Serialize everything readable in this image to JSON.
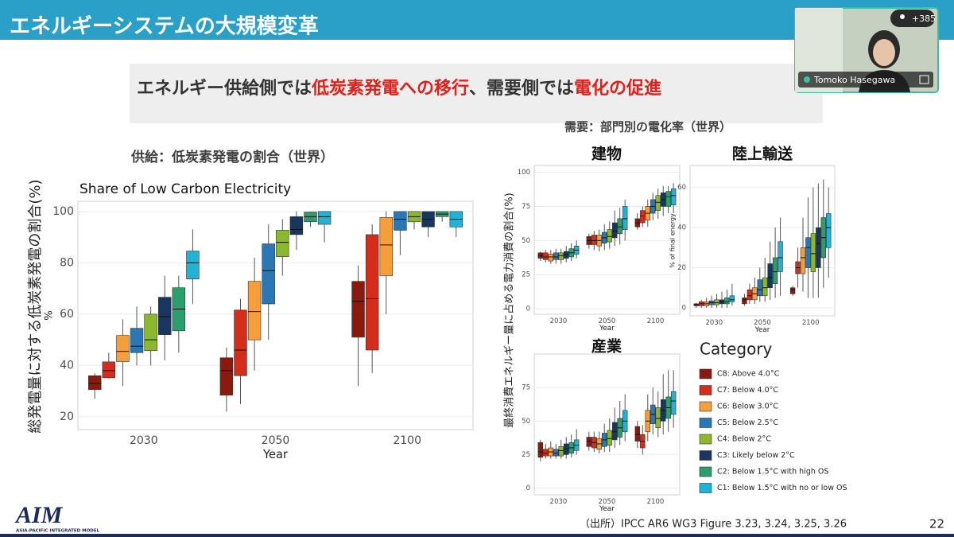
{
  "slide": {
    "title": "エネルギーシステムの大規模変革",
    "headline": [
      {
        "text": "エネルギー供給側では",
        "color": "#333333"
      },
      {
        "text": "低炭素発電への移行",
        "color": "#e0201b"
      },
      {
        "text": "、需要側では",
        "color": "#333333"
      },
      {
        "text": "電化の促進",
        "color": "#e0201b"
      }
    ],
    "supply_heading": "供給：低炭素発電の割合（世界）",
    "demand_heading": "需要：部門別の電化率（世界）",
    "supply_ylabel": "総発電量に対する低炭素発電の割合(%)",
    "demand_ylabel": "最終消費エネルギー量に占める電力消費の割合(%)",
    "source": "（出所）IPCC AR6 WG3 Figure 3.23, 3.24, 3.25, 3.26",
    "page_number": "22",
    "logo": {
      "name": "AIM",
      "tagline": "ASIA-PACIFIC INTEGRATED MODEL"
    }
  },
  "video": {
    "participant": "Tomoko Hasegawa",
    "count": "+385"
  },
  "legend": {
    "title": "Category",
    "series": [
      {
        "name": "C8: Above 4.0°C",
        "color": "#8b1a0e"
      },
      {
        "name": "C7: Below 4.0°C",
        "color": "#d62d1a"
      },
      {
        "name": "C6: Below 3.0°C",
        "color": "#f59e3a"
      },
      {
        "name": "C5: Below 2.5°C",
        "color": "#2a77b4"
      },
      {
        "name": "C4: Below 2°C",
        "color": "#8ab82e"
      },
      {
        "name": "C3: Likely below 2°C",
        "color": "#17375e"
      },
      {
        "name": "C2: Below 1.5°C with high OS",
        "color": "#2c9e6e"
      },
      {
        "name": "C1: Below 1.5°C with no or low OS",
        "color": "#22b2d6"
      }
    ]
  },
  "chart_data": [
    {
      "type": "box",
      "title": "Share of Low Carbon Electricity",
      "xlabel": "Year",
      "ylabel": "%",
      "categories": [
        "2030",
        "2050",
        "2100"
      ],
      "ylim": [
        15,
        104
      ],
      "yticks": [
        20,
        40,
        60,
        80,
        100
      ],
      "grid": true,
      "series": [
        {
          "values": [
            [
              27,
              30.6,
              33,
              36,
              37
            ],
            [
              22,
              28.4,
              38,
              43,
              47
            ],
            [
              32,
              51,
              65,
              72.8,
              79
            ]
          ]
        },
        {
          "values": [
            [
              35,
              35.2,
              38,
              41.4,
              45
            ],
            [
              25,
              36,
              46,
              61.6,
              66
            ],
            [
              37,
              46,
              66,
              91,
              95
            ]
          ]
        },
        {
          "values": [
            [
              32,
              41.5,
              45.5,
              51.7,
              58
            ],
            [
              38,
              50,
              61,
              72.8,
              82
            ],
            [
              60,
              75,
              87,
              97.7,
              100
            ]
          ]
        },
        {
          "values": [
            [
              40,
              45,
              47.5,
              54.5,
              63
            ],
            [
              50,
              64,
              77,
              87.4,
              95
            ],
            [
              83,
              92.7,
              97,
              100,
              100
            ]
          ]
        },
        {
          "values": [
            [
              40,
              45.8,
              50,
              60,
              63
            ],
            [
              75,
              82.4,
              88,
              92.7,
              97
            ],
            [
              93,
              96,
              98,
              100,
              100
            ]
          ]
        },
        {
          "values": [
            [
              42,
              52,
              59,
              66.6,
              75
            ],
            [
              85,
              91,
              93,
              98,
              100
            ],
            [
              90,
              94,
              97,
              100,
              100
            ]
          ]
        },
        {
          "values": [
            [
              45,
              53.5,
              62,
              70.3,
              75
            ],
            [
              94,
              96,
              98,
              99.8,
              100
            ],
            [
              96,
              98,
              99,
              100,
              100
            ]
          ]
        },
        {
          "values": [
            [
              64,
              73.7,
              80,
              84.6,
              93
            ],
            [
              88,
              95,
              98,
              100,
              100
            ],
            [
              90,
              94,
              97,
              100,
              100
            ]
          ]
        }
      ]
    },
    {
      "type": "box",
      "title": "建物",
      "xlabel": "Year",
      "categories": [
        "2030",
        "2050",
        "2100"
      ],
      "ylim": [
        -4,
        105
      ],
      "yticks": [
        0,
        25,
        50,
        75,
        100
      ],
      "grid": true,
      "series": [
        {
          "values": [
            [
              35,
              37,
              39,
              41,
              42
            ],
            [
              44,
              47,
              50,
              53,
              55
            ],
            [
              58,
              60,
              63,
              66,
              70
            ]
          ]
        },
        {
          "values": [
            [
              34,
              36,
              38,
              41,
              43
            ],
            [
              43,
              47,
              50,
              54,
              57
            ],
            [
              60,
              63,
              68,
              72,
              75
            ]
          ]
        },
        {
          "values": [
            [
              33,
              35,
              38,
              40,
              43
            ],
            [
              42,
              46,
              50,
              54,
              58
            ],
            [
              60,
              65,
              70,
              75,
              80
            ]
          ]
        },
        {
          "values": [
            [
              33,
              36,
              38,
              41,
              44
            ],
            [
              43,
              48,
              52,
              56,
              62
            ],
            [
              65,
              70,
              75,
              80,
              85
            ]
          ]
        },
        {
          "values": [
            [
              33,
              36,
              39,
              41,
              44
            ],
            [
              44,
              49,
              53,
              58,
              64
            ],
            [
              66,
              72,
              78,
              83,
              88
            ]
          ]
        },
        {
          "values": [
            [
              34,
              37,
              40,
              42,
              46
            ],
            [
              46,
              52,
              57,
              63,
              72
            ],
            [
              68,
              75,
              80,
              85,
              90
            ]
          ]
        },
        {
          "values": [
            [
              35,
              38,
              41,
              44,
              48
            ],
            [
              47,
              55,
              60,
              66,
              74
            ],
            [
              70,
              75,
              82,
              86,
              90
            ]
          ]
        },
        {
          "values": [
            [
              37,
              40,
              43,
              46,
              50
            ],
            [
              50,
              58,
              66,
              75,
              80
            ],
            [
              70,
              76,
              83,
              88,
              92
            ]
          ]
        }
      ]
    },
    {
      "type": "box",
      "title": "陸上輸送",
      "xlabel": "Year",
      "ylabel": "% of final energy",
      "categories": [
        "2030",
        "2050",
        "2100"
      ],
      "ylim": [
        -4,
        71
      ],
      "yticks": [
        0,
        20,
        40,
        60
      ],
      "grid": true,
      "series": [
        {
          "values": [
            [
              0,
              1,
              1.5,
              2,
              2.5
            ],
            [
              1,
              2,
              4,
              5,
              7
            ],
            [
              6,
              7,
              9,
              10,
              11
            ]
          ]
        },
        {
          "values": [
            [
              0,
              1,
              2,
              3,
              4
            ],
            [
              2,
              4,
              6,
              9,
              12
            ],
            [
              10,
              17,
              20,
              23,
              30
            ]
          ]
        },
        {
          "values": [
            [
              0,
              1,
              2,
              3,
              5
            ],
            [
              2,
              4,
              7,
              10,
              15
            ],
            [
              8,
              17,
              25,
              30,
              45
            ]
          ]
        },
        {
          "values": [
            [
              0,
              1.5,
              2.5,
              3.5,
              6
            ],
            [
              3,
              6,
              9,
              14,
              20
            ],
            [
              5,
              20,
              30,
              35,
              55
            ]
          ]
        },
        {
          "values": [
            [
              0,
              1.5,
              2.5,
              4,
              7
            ],
            [
              3,
              6,
              10,
              15,
              25
            ],
            [
              5,
              18,
              27,
              37,
              60
            ]
          ]
        },
        {
          "values": [
            [
              0,
              2,
              3,
              4,
              8
            ],
            [
              4,
              10,
              15,
              22,
              33
            ],
            [
              5,
              20,
              32,
              40,
              62
            ]
          ]
        },
        {
          "values": [
            [
              0,
              2,
              3,
              5,
              9
            ],
            [
              5,
              12,
              18,
              25,
              40
            ],
            [
              10,
              25,
              35,
              45,
              64
            ]
          ]
        },
        {
          "values": [
            [
              1,
              3,
              4,
              6,
              12
            ],
            [
              6,
              18,
              25,
              33,
              45
            ],
            [
              15,
              30,
              40,
              47,
              60
            ]
          ]
        }
      ]
    },
    {
      "type": "box",
      "title": "産業",
      "xlabel": "Year",
      "categories": [
        "2030",
        "2050",
        "2100"
      ],
      "ylim": [
        -5,
        100
      ],
      "yticks": [
        0,
        25,
        50,
        75
      ],
      "grid": true,
      "series": [
        {
          "values": [
            [
              20,
              23,
              27,
              34,
              36
            ],
            [
              28,
              31,
              35,
              38,
              42
            ],
            [
              30,
              35,
              40,
              46,
              50
            ]
          ]
        },
        {
          "values": [
            [
              22,
              24,
              26,
              29,
              33
            ],
            [
              27,
              30,
              34,
              38,
              42
            ],
            [
              25,
              30,
              35,
              40,
              47
            ]
          ]
        },
        {
          "values": [
            [
              22,
              24,
              27,
              30,
              35
            ],
            [
              26,
              29,
              33,
              37,
              42
            ],
            [
              35,
              42,
              50,
              58,
              70
            ]
          ]
        },
        {
          "values": [
            [
              22,
              24,
              26,
              29,
              33
            ],
            [
              27,
              31,
              36,
              41,
              48
            ],
            [
              40,
              48,
              55,
              62,
              75
            ]
          ]
        },
        {
          "values": [
            [
              22,
              24,
              28,
              31,
              36
            ],
            [
              27,
              32,
              37,
              43,
              52
            ],
            [
              38,
              45,
              52,
              60,
              72
            ]
          ]
        },
        {
          "values": [
            [
              22,
              25,
              29,
              33,
              38
            ],
            [
              30,
              36,
              42,
              49,
              60
            ],
            [
              40,
              50,
              58,
              66,
              85
            ]
          ]
        },
        {
          "values": [
            [
              23,
              26,
              30,
              34,
              40
            ],
            [
              32,
              38,
              45,
              52,
              65
            ],
            [
              42,
              52,
              60,
              68,
              88
            ]
          ]
        },
        {
          "values": [
            [
              25,
              28,
              32,
              36,
              44
            ],
            [
              35,
              42,
              50,
              58,
              70
            ],
            [
              45,
              55,
              65,
              72,
              88
            ]
          ]
        }
      ]
    }
  ]
}
